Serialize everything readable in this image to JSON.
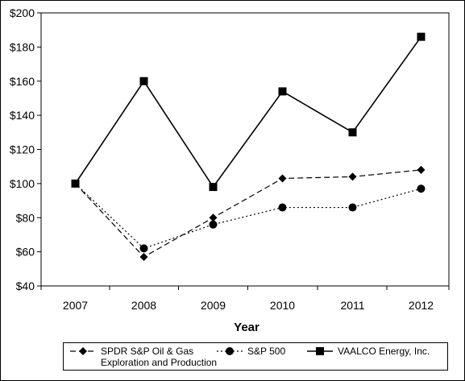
{
  "chart_data": {
    "type": "line",
    "categories": [
      "2007",
      "2008",
      "2009",
      "2010",
      "2011",
      "2012"
    ],
    "xlabel": "Year",
    "ylabel": "",
    "ylim": [
      40,
      200
    ],
    "yticks": [
      "$40",
      "$60",
      "$80",
      "$100",
      "$120",
      "$140",
      "$160",
      "$180",
      "$200"
    ],
    "ytick_values": [
      40,
      60,
      80,
      100,
      120,
      140,
      160,
      180,
      200
    ],
    "grid": false,
    "legend_position": "bottom",
    "series": [
      {
        "name": "SPDR S&P Oil & Gas Exploration and Production",
        "legend_lines": [
          "SPDR S&P Oil & Gas",
          "Exploration and Production"
        ],
        "marker": "diamond",
        "line_style": "dashed",
        "values": [
          100,
          57,
          80,
          103,
          104,
          108
        ]
      },
      {
        "name": "S&P 500",
        "legend_lines": [
          "S&P 500"
        ],
        "marker": "circle",
        "line_style": "dotted",
        "values": [
          100,
          62,
          76,
          86,
          86,
          97
        ]
      },
      {
        "name": "VAALCO Energy, Inc.",
        "legend_lines": [
          "VAALCO Energy, Inc."
        ],
        "marker": "square",
        "line_style": "solid",
        "values": [
          100,
          160,
          98,
          154,
          130,
          186
        ]
      }
    ]
  }
}
